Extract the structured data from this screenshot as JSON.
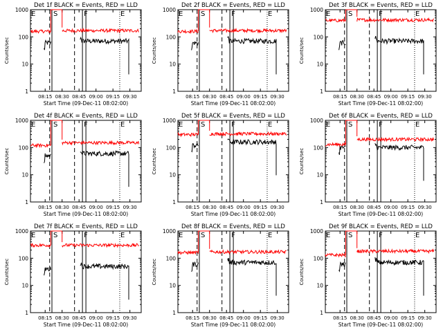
{
  "figure": {
    "xlabel": "Start Time (09-Dec-11 08:02:00)",
    "ylabel": "Counts/sec"
  },
  "chart_data": [
    {
      "type": "line",
      "title": "Det 1f BLACK = Events, RED = LLD",
      "xlabel": "Start Time (09-Dec-11 08:02:00)",
      "ylabel": "Counts/sec",
      "x_tick_labels": [
        "08:15",
        "08:30",
        "08:45",
        "09:00",
        "09:15",
        "09:30"
      ],
      "y_tick_labels": [
        "1000",
        "100",
        "10",
        "1"
      ],
      "yscale": "log",
      "ylim": [
        1,
        1000
      ],
      "xlim": [
        "08:02",
        "09:40"
      ],
      "event_markers": [
        {
          "label": "E",
          "time": "08:02",
          "style": "dotted"
        },
        {
          "label": "S",
          "time": "08:21",
          "style": "solid"
        },
        {
          "label": "F",
          "time": "08:48",
          "style": "solid"
        },
        {
          "label": "E",
          "time": "09:21",
          "style": "dotted"
        }
      ],
      "dashed_lines": [
        "08:19",
        "08:41"
      ],
      "series": [
        {
          "name": "Events",
          "color": "#000000",
          "segments": [
            {
              "x_start": "08:14",
              "x_end": "08:20",
              "level": 60
            },
            {
              "x_start": "08:46",
              "x_end": "09:29",
              "level": 70
            }
          ]
        },
        {
          "name": "LLD",
          "color": "#ff0000",
          "segments": [
            {
              "x_start": "08:02",
              "x_end": "08:20",
              "level": 160
            },
            {
              "x_start": "08:20",
              "x_end": "08:30",
              "level": 1000
            },
            {
              "x_start": "08:30",
              "x_end": "09:38",
              "level": 170
            }
          ]
        }
      ]
    },
    {
      "type": "line",
      "title": "Det 2f BLACK = Events, RED = LLD",
      "xlabel": "Start Time (09-Dec-11 08:02:00)",
      "ylabel": "Counts/sec",
      "x_tick_labels": [
        "08:15",
        "08:30",
        "08:45",
        "09:00",
        "09:15",
        "09:30"
      ],
      "y_tick_labels": [
        "1000",
        "100",
        "10",
        "1"
      ],
      "yscale": "log",
      "ylim": [
        1,
        1000
      ],
      "xlim": [
        "08:02",
        "09:40"
      ],
      "event_markers": [
        {
          "label": "E",
          "time": "08:02",
          "style": "dotted"
        },
        {
          "label": "S",
          "time": "08:21",
          "style": "solid"
        },
        {
          "label": "F",
          "time": "08:48",
          "style": "solid"
        },
        {
          "label": "E",
          "time": "09:21",
          "style": "dotted"
        }
      ],
      "dashed_lines": [
        "08:19",
        "08:41"
      ],
      "series": [
        {
          "name": "Events",
          "color": "#000000",
          "segments": [
            {
              "x_start": "08:14",
              "x_end": "08:20",
              "level": 60
            },
            {
              "x_start": "08:46",
              "x_end": "09:29",
              "level": 70
            }
          ]
        },
        {
          "name": "LLD",
          "color": "#ff0000",
          "segments": [
            {
              "x_start": "08:02",
              "x_end": "08:20",
              "level": 160
            },
            {
              "x_start": "08:20",
              "x_end": "08:30",
              "level": 1000
            },
            {
              "x_start": "08:30",
              "x_end": "09:38",
              "level": 170
            }
          ]
        }
      ]
    },
    {
      "type": "line",
      "title": "Det 3f BLACK = Events, RED = LLD",
      "xlabel": "Start Time (09-Dec-11 08:02:00)",
      "ylabel": "Counts/sec",
      "x_tick_labels": [
        "08:15",
        "08:30",
        "08:45",
        "09:00",
        "09:15",
        "09:30"
      ],
      "y_tick_labels": [
        "1000",
        "100",
        "10",
        "1"
      ],
      "yscale": "log",
      "ylim": [
        1,
        1000
      ],
      "xlim": [
        "08:02",
        "09:40"
      ],
      "event_markers": [
        {
          "label": "E",
          "time": "08:02",
          "style": "dotted"
        },
        {
          "label": "S",
          "time": "08:21",
          "style": "solid"
        },
        {
          "label": "F",
          "time": "08:48",
          "style": "solid"
        },
        {
          "label": "E",
          "time": "09:21",
          "style": "dotted"
        }
      ],
      "dashed_lines": [
        "08:19",
        "08:41"
      ],
      "series": [
        {
          "name": "Events",
          "color": "#000000",
          "segments": [
            {
              "x_start": "08:14",
              "x_end": "08:20",
              "level": 60
            },
            {
              "x_start": "08:46",
              "x_end": "09:29",
              "level": 70
            }
          ]
        },
        {
          "name": "LLD",
          "color": "#ff0000",
          "segments": [
            {
              "x_start": "08:02",
              "x_end": "08:20",
              "level": 400
            },
            {
              "x_start": "08:20",
              "x_end": "08:30",
              "level": 1000
            },
            {
              "x_start": "08:30",
              "x_end": "09:38",
              "level": 420
            }
          ]
        }
      ]
    },
    {
      "type": "line",
      "title": "Det 4f BLACK = Events, RED = LLD",
      "xlabel": "Start Time (09-Dec-11 08:02:00)",
      "ylabel": "Counts/sec",
      "x_tick_labels": [
        "08:15",
        "08:30",
        "08:45",
        "09:00",
        "09:15",
        "09:30"
      ],
      "y_tick_labels": [
        "1000",
        "100",
        "10",
        "1"
      ],
      "yscale": "log",
      "ylim": [
        1,
        1000
      ],
      "xlim": [
        "08:02",
        "09:40"
      ],
      "event_markers": [
        {
          "label": "E",
          "time": "08:02",
          "style": "dotted"
        },
        {
          "label": "S",
          "time": "08:21",
          "style": "solid"
        },
        {
          "label": "F",
          "time": "08:48",
          "style": "solid"
        },
        {
          "label": "E",
          "time": "09:21",
          "style": "dotted"
        }
      ],
      "dashed_lines": [
        "08:19",
        "08:41"
      ],
      "series": [
        {
          "name": "Events",
          "color": "#000000",
          "segments": [
            {
              "x_start": "08:14",
              "x_end": "08:20",
              "level": 50
            },
            {
              "x_start": "08:46",
              "x_end": "09:29",
              "level": 60
            }
          ]
        },
        {
          "name": "LLD",
          "color": "#ff0000",
          "segments": [
            {
              "x_start": "08:02",
              "x_end": "08:20",
              "level": 120
            },
            {
              "x_start": "08:20",
              "x_end": "08:30",
              "level": 1000
            },
            {
              "x_start": "08:30",
              "x_end": "09:38",
              "level": 150
            }
          ]
        }
      ]
    },
    {
      "type": "line",
      "title": "Det 5f BLACK = Events, RED = LLD",
      "xlabel": "Start Time (09-Dec-11 08:02:00)",
      "ylabel": "Counts/sec",
      "x_tick_labels": [
        "08:15",
        "08:30",
        "08:45",
        "09:00",
        "09:15",
        "09:30"
      ],
      "y_tick_labels": [
        "1000",
        "100",
        "10",
        "1"
      ],
      "yscale": "log",
      "ylim": [
        1,
        1000
      ],
      "xlim": [
        "08:02",
        "09:40"
      ],
      "event_markers": [
        {
          "label": "E",
          "time": "08:02",
          "style": "dotted"
        },
        {
          "label": "S",
          "time": "08:21",
          "style": "solid"
        },
        {
          "label": "F",
          "time": "08:48",
          "style": "solid"
        },
        {
          "label": "E",
          "time": "09:21",
          "style": "dotted"
        }
      ],
      "dashed_lines": [
        "08:19",
        "08:41"
      ],
      "series": [
        {
          "name": "Events",
          "color": "#000000",
          "segments": [
            {
              "x_start": "08:14",
              "x_end": "08:20",
              "level": 120
            },
            {
              "x_start": "08:46",
              "x_end": "09:29",
              "level": 160
            }
          ]
        },
        {
          "name": "LLD",
          "color": "#ff0000",
          "segments": [
            {
              "x_start": "08:02",
              "x_end": "08:20",
              "level": 300
            },
            {
              "x_start": "08:20",
              "x_end": "08:30",
              "level": 1000
            },
            {
              "x_start": "08:30",
              "x_end": "09:38",
              "level": 320
            }
          ]
        }
      ]
    },
    {
      "type": "line",
      "title": "Det 6f BLACK = Events, RED = LLD",
      "xlabel": "Start Time (09-Dec-11 08:02:00)",
      "ylabel": "Counts/sec",
      "x_tick_labels": [
        "08:15",
        "08:30",
        "08:45",
        "09:00",
        "09:15",
        "09:30"
      ],
      "y_tick_labels": [
        "1000",
        "100",
        "10",
        "1"
      ],
      "yscale": "log",
      "ylim": [
        1,
        1000
      ],
      "xlim": [
        "08:02",
        "09:40"
      ],
      "event_markers": [
        {
          "label": "E",
          "time": "08:02",
          "style": "dotted"
        },
        {
          "label": "S",
          "time": "08:21",
          "style": "solid"
        },
        {
          "label": "F",
          "time": "08:48",
          "style": "solid"
        },
        {
          "label": "E",
          "time": "09:21",
          "style": "dotted"
        }
      ],
      "dashed_lines": [
        "08:19",
        "08:41"
      ],
      "series": [
        {
          "name": "Events",
          "color": "#000000",
          "segments": [
            {
              "x_start": "08:14",
              "x_end": "08:20",
              "level": 100
            },
            {
              "x_start": "08:46",
              "x_end": "09:29",
              "level": 100
            }
          ]
        },
        {
          "name": "LLD",
          "color": "#ff0000",
          "segments": [
            {
              "x_start": "08:02",
              "x_end": "08:20",
              "level": 130
            },
            {
              "x_start": "08:20",
              "x_end": "08:30",
              "level": 1000
            },
            {
              "x_start": "08:30",
              "x_end": "09:38",
              "level": 200
            }
          ]
        }
      ]
    },
    {
      "type": "line",
      "title": "Det 7f BLACK = Events, RED = LLD",
      "xlabel": "Start Time (09-Dec-11 08:02:00)",
      "ylabel": "Counts/sec",
      "x_tick_labels": [
        "08:15",
        "08:30",
        "08:45",
        "09:00",
        "09:15",
        "09:30"
      ],
      "y_tick_labels": [
        "1000",
        "100",
        "10",
        "1"
      ],
      "yscale": "log",
      "ylim": [
        1,
        1000
      ],
      "xlim": [
        "08:02",
        "09:40"
      ],
      "event_markers": [
        {
          "label": "E",
          "time": "08:02",
          "style": "dotted"
        },
        {
          "label": "S",
          "time": "08:21",
          "style": "solid"
        },
        {
          "label": "F",
          "time": "08:48",
          "style": "solid"
        },
        {
          "label": "E",
          "time": "09:21",
          "style": "dotted"
        }
      ],
      "dashed_lines": [
        "08:19",
        "08:41"
      ],
      "series": [
        {
          "name": "Events",
          "color": "#000000",
          "segments": [
            {
              "x_start": "08:14",
              "x_end": "08:20",
              "level": 40
            },
            {
              "x_start": "08:46",
              "x_end": "09:29",
              "level": 50
            }
          ]
        },
        {
          "name": "LLD",
          "color": "#ff0000",
          "segments": [
            {
              "x_start": "08:02",
              "x_end": "08:20",
              "level": 300
            },
            {
              "x_start": "08:20",
              "x_end": "08:30",
              "level": 1000
            },
            {
              "x_start": "08:30",
              "x_end": "09:38",
              "level": 300
            }
          ]
        }
      ]
    },
    {
      "type": "line",
      "title": "Det 8f BLACK = Events, RED = LLD",
      "xlabel": "Start Time (09-Dec-11 08:02:00)",
      "ylabel": "Counts/sec",
      "x_tick_labels": [
        "08:15",
        "08:30",
        "08:45",
        "09:00",
        "09:15",
        "09:30"
      ],
      "y_tick_labels": [
        "1000",
        "100",
        "10",
        "1"
      ],
      "yscale": "log",
      "ylim": [
        1,
        1000
      ],
      "xlim": [
        "08:02",
        "09:40"
      ],
      "event_markers": [
        {
          "label": "E",
          "time": "08:02",
          "style": "dotted"
        },
        {
          "label": "S",
          "time": "08:21",
          "style": "solid"
        },
        {
          "label": "F",
          "time": "08:48",
          "style": "solid"
        },
        {
          "label": "E",
          "time": "09:21",
          "style": "dotted"
        }
      ],
      "dashed_lines": [
        "08:19",
        "08:41"
      ],
      "series": [
        {
          "name": "Events",
          "color": "#000000",
          "segments": [
            {
              "x_start": "08:14",
              "x_end": "08:20",
              "level": 60
            },
            {
              "x_start": "08:46",
              "x_end": "09:29",
              "level": 70
            }
          ]
        },
        {
          "name": "LLD",
          "color": "#ff0000",
          "segments": [
            {
              "x_start": "08:02",
              "x_end": "08:20",
              "level": 160
            },
            {
              "x_start": "08:20",
              "x_end": "08:30",
              "level": 1000
            },
            {
              "x_start": "08:30",
              "x_end": "09:38",
              "level": 170
            }
          ]
        }
      ]
    },
    {
      "type": "line",
      "title": "Det 9f BLACK = Events, RED = LLD",
      "xlabel": "Start Time (09-Dec-11 08:02:00)",
      "ylabel": "Counts/sec",
      "x_tick_labels": [
        "08:15",
        "08:30",
        "08:45",
        "09:00",
        "09:15",
        "09:30"
      ],
      "y_tick_labels": [
        "1000",
        "100",
        "10",
        "1"
      ],
      "yscale": "log",
      "ylim": [
        1,
        1000
      ],
      "xlim": [
        "08:02",
        "09:40"
      ],
      "event_markers": [
        {
          "label": "E",
          "time": "08:02",
          "style": "dotted"
        },
        {
          "label": "S",
          "time": "08:21",
          "style": "solid"
        },
        {
          "label": "F",
          "time": "08:48",
          "style": "solid"
        },
        {
          "label": "E",
          "time": "09:21",
          "style": "dotted"
        }
      ],
      "dashed_lines": [
        "08:19",
        "08:41"
      ],
      "series": [
        {
          "name": "Events",
          "color": "#000000",
          "segments": [
            {
              "x_start": "08:14",
              "x_end": "08:20",
              "level": 60
            },
            {
              "x_start": "08:46",
              "x_end": "09:29",
              "level": 70
            }
          ]
        },
        {
          "name": "LLD",
          "color": "#ff0000",
          "segments": [
            {
              "x_start": "08:02",
              "x_end": "08:20",
              "level": 130
            },
            {
              "x_start": "08:20",
              "x_end": "08:30",
              "level": 1000
            },
            {
              "x_start": "08:30",
              "x_end": "09:38",
              "level": 180
            }
          ]
        }
      ]
    }
  ]
}
